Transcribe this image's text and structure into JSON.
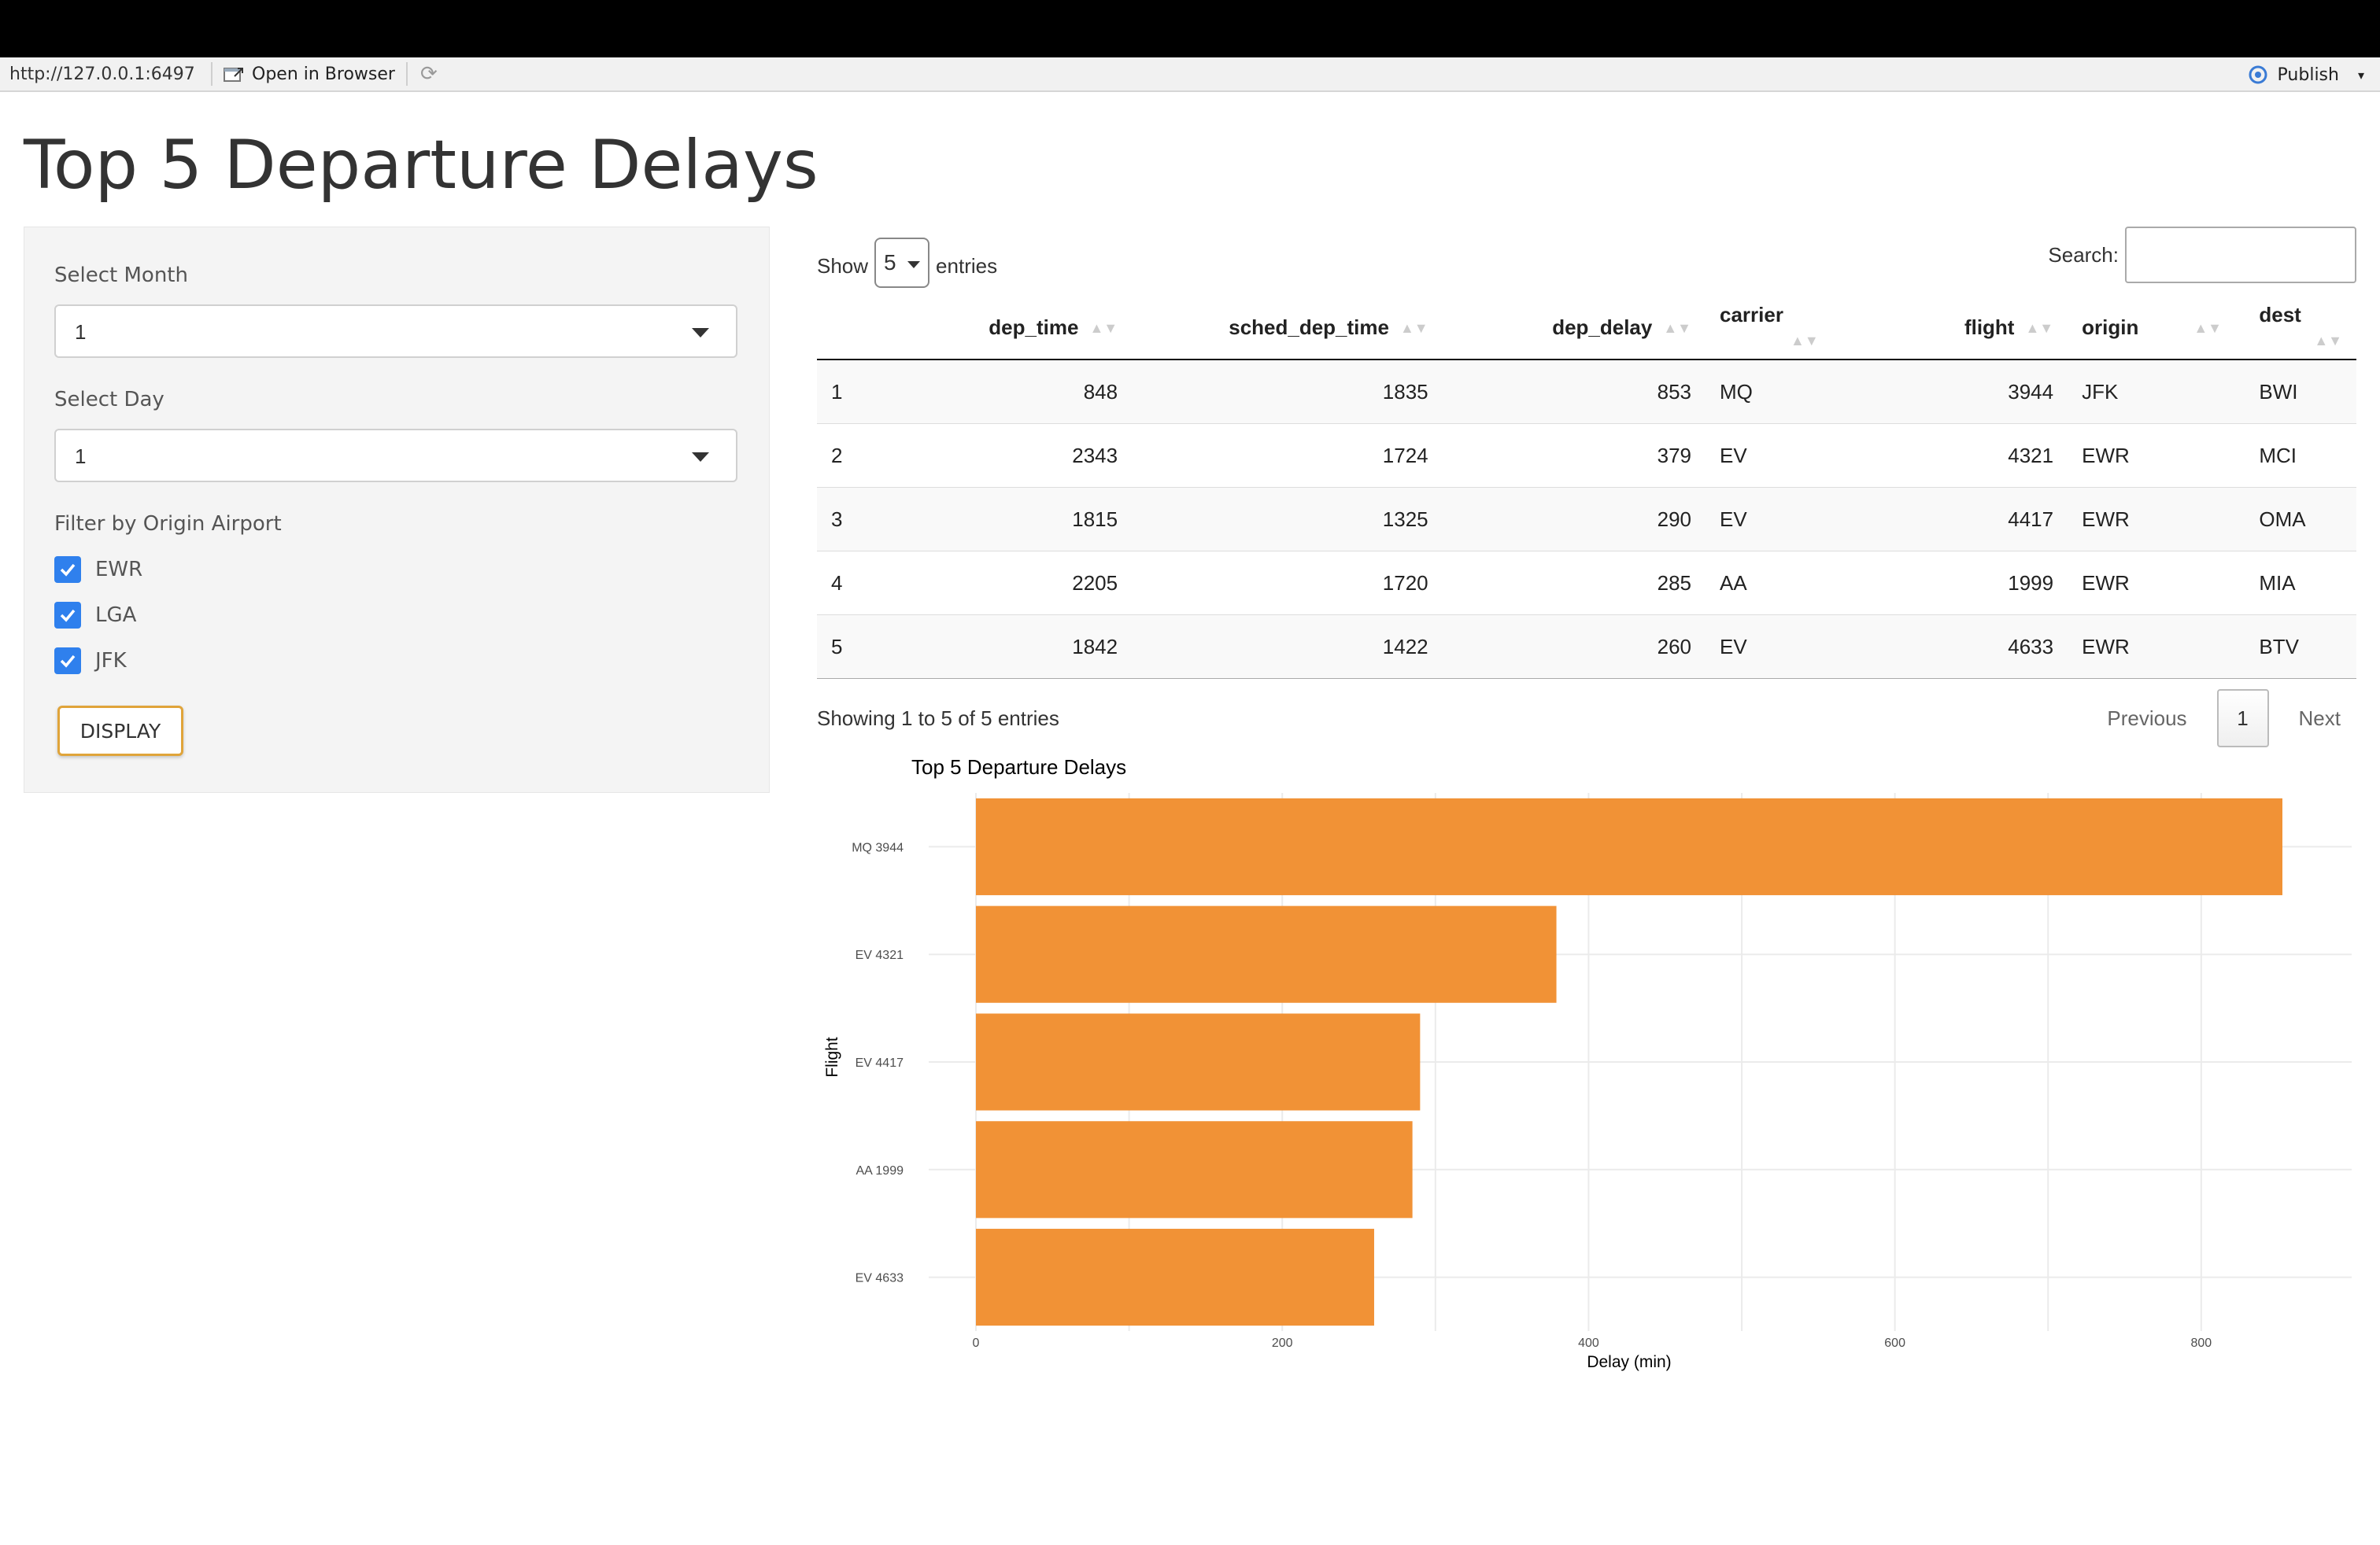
{
  "browser": {
    "url": "http://127.0.0.1:6497",
    "open_in_browser": "Open in Browser",
    "publish": "Publish"
  },
  "page_title": "Top 5 Departure Delays",
  "sidebar": {
    "month_label": "Select Month",
    "month_value": "1",
    "day_label": "Select Day",
    "day_value": "1",
    "origin_label": "Filter by Origin Airport",
    "origins": [
      {
        "label": "EWR",
        "checked": true
      },
      {
        "label": "LGA",
        "checked": true
      },
      {
        "label": "JFK",
        "checked": true
      }
    ],
    "display_button": "DISPLAY"
  },
  "datatable": {
    "show_label": "Show",
    "length_value": "5",
    "entries_label": "entries",
    "search_label": "Search:",
    "columns": [
      "",
      "dep_time",
      "sched_dep_time",
      "dep_delay",
      "carrier",
      "flight",
      "origin",
      "dest"
    ],
    "rows": [
      [
        "1",
        "848",
        "1835",
        "853",
        "MQ",
        "3944",
        "JFK",
        "BWI"
      ],
      [
        "2",
        "2343",
        "1724",
        "379",
        "EV",
        "4321",
        "EWR",
        "MCI"
      ],
      [
        "3",
        "1815",
        "1325",
        "290",
        "EV",
        "4417",
        "EWR",
        "OMA"
      ],
      [
        "4",
        "2205",
        "1720",
        "285",
        "AA",
        "1999",
        "EWR",
        "MIA"
      ],
      [
        "5",
        "1842",
        "1422",
        "260",
        "EV",
        "4633",
        "EWR",
        "BTV"
      ]
    ],
    "info": "Showing 1 to 5 of 5 entries",
    "previous": "Previous",
    "current_page": "1",
    "next": "Next"
  },
  "chart_data": {
    "type": "bar",
    "orientation": "horizontal",
    "title": "Top 5 Departure Delays",
    "xlabel": "Delay (min)",
    "ylabel": "Flight",
    "categories": [
      "MQ 3944",
      "EV 4321",
      "EV 4417",
      "AA 1999",
      "EV 4633"
    ],
    "values": [
      853,
      379,
      290,
      285,
      260
    ],
    "xlim": [
      0,
      900
    ],
    "xticks": [
      0,
      200,
      400,
      600,
      800
    ],
    "grid": true,
    "bar_color": "#f19236"
  },
  "colors": {
    "accent_button_border": "#e0a43a",
    "checkbox": "#2f80ed"
  }
}
